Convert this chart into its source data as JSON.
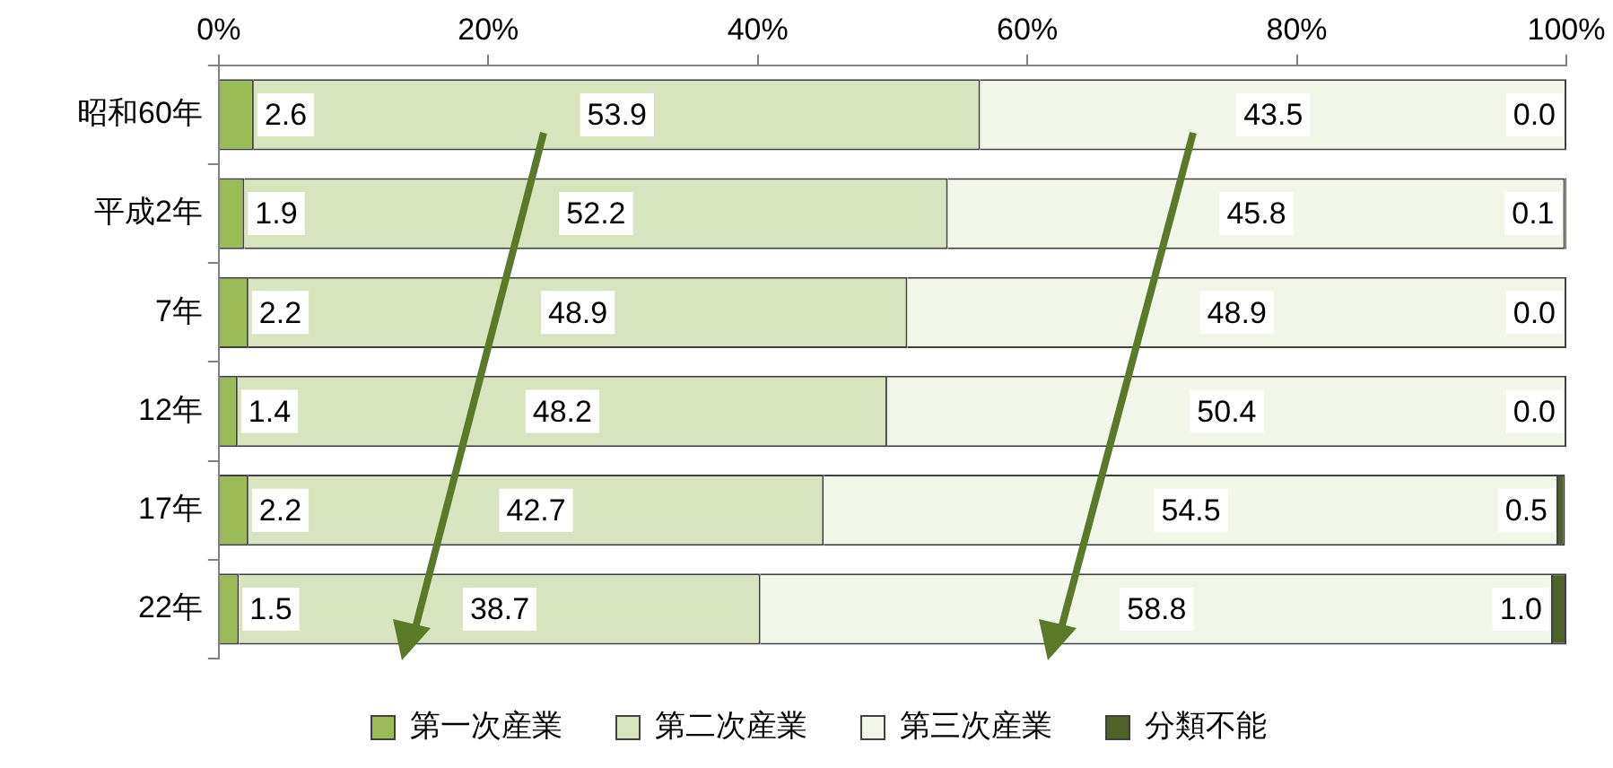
{
  "chart_data": {
    "type": "bar",
    "orientation": "horizontal",
    "stacked": true,
    "categories": [
      "昭和60年",
      "平成2年",
      "7年",
      "12年",
      "17年",
      "22年"
    ],
    "series": [
      {
        "name": "第一次産業",
        "color": "#9bbb59",
        "values": [
          2.6,
          1.9,
          2.2,
          1.4,
          2.2,
          1.5
        ],
        "value_labels": [
          "2.6",
          "1.9",
          "2.2",
          "1.4",
          "2.2",
          "1.5"
        ]
      },
      {
        "name": "第二次産業",
        "color": "#d7e4bd",
        "values": [
          53.9,
          52.2,
          48.9,
          48.2,
          42.7,
          38.7
        ],
        "value_labels": [
          "53.9",
          "52.2",
          "48.9",
          "48.2",
          "42.7",
          "38.7"
        ]
      },
      {
        "name": "第三次産業",
        "color": "#f2f6e8",
        "values": [
          43.5,
          45.8,
          48.9,
          50.4,
          54.5,
          58.8
        ],
        "value_labels": [
          "43.5",
          "45.8",
          "48.9",
          "50.4",
          "54.5",
          "58.8"
        ]
      },
      {
        "name": "分類不能",
        "color": "#4f6228",
        "values": [
          0.0,
          0.1,
          0.0,
          0.0,
          0.5,
          1.0
        ],
        "value_labels": [
          "0.0",
          "0.1",
          "0.0",
          "0.0",
          "0.5",
          "1.0"
        ]
      }
    ],
    "xlim": [
      0,
      100
    ],
    "xticks": [
      {
        "value": 0,
        "label": "0%"
      },
      {
        "value": 20,
        "label": "20%"
      },
      {
        "value": 40,
        "label": "40%"
      },
      {
        "value": 60,
        "label": "60%"
      },
      {
        "value": 80,
        "label": "80%"
      },
      {
        "value": 100,
        "label": "100%"
      }
    ],
    "legend": "bottom",
    "grid": false
  }
}
